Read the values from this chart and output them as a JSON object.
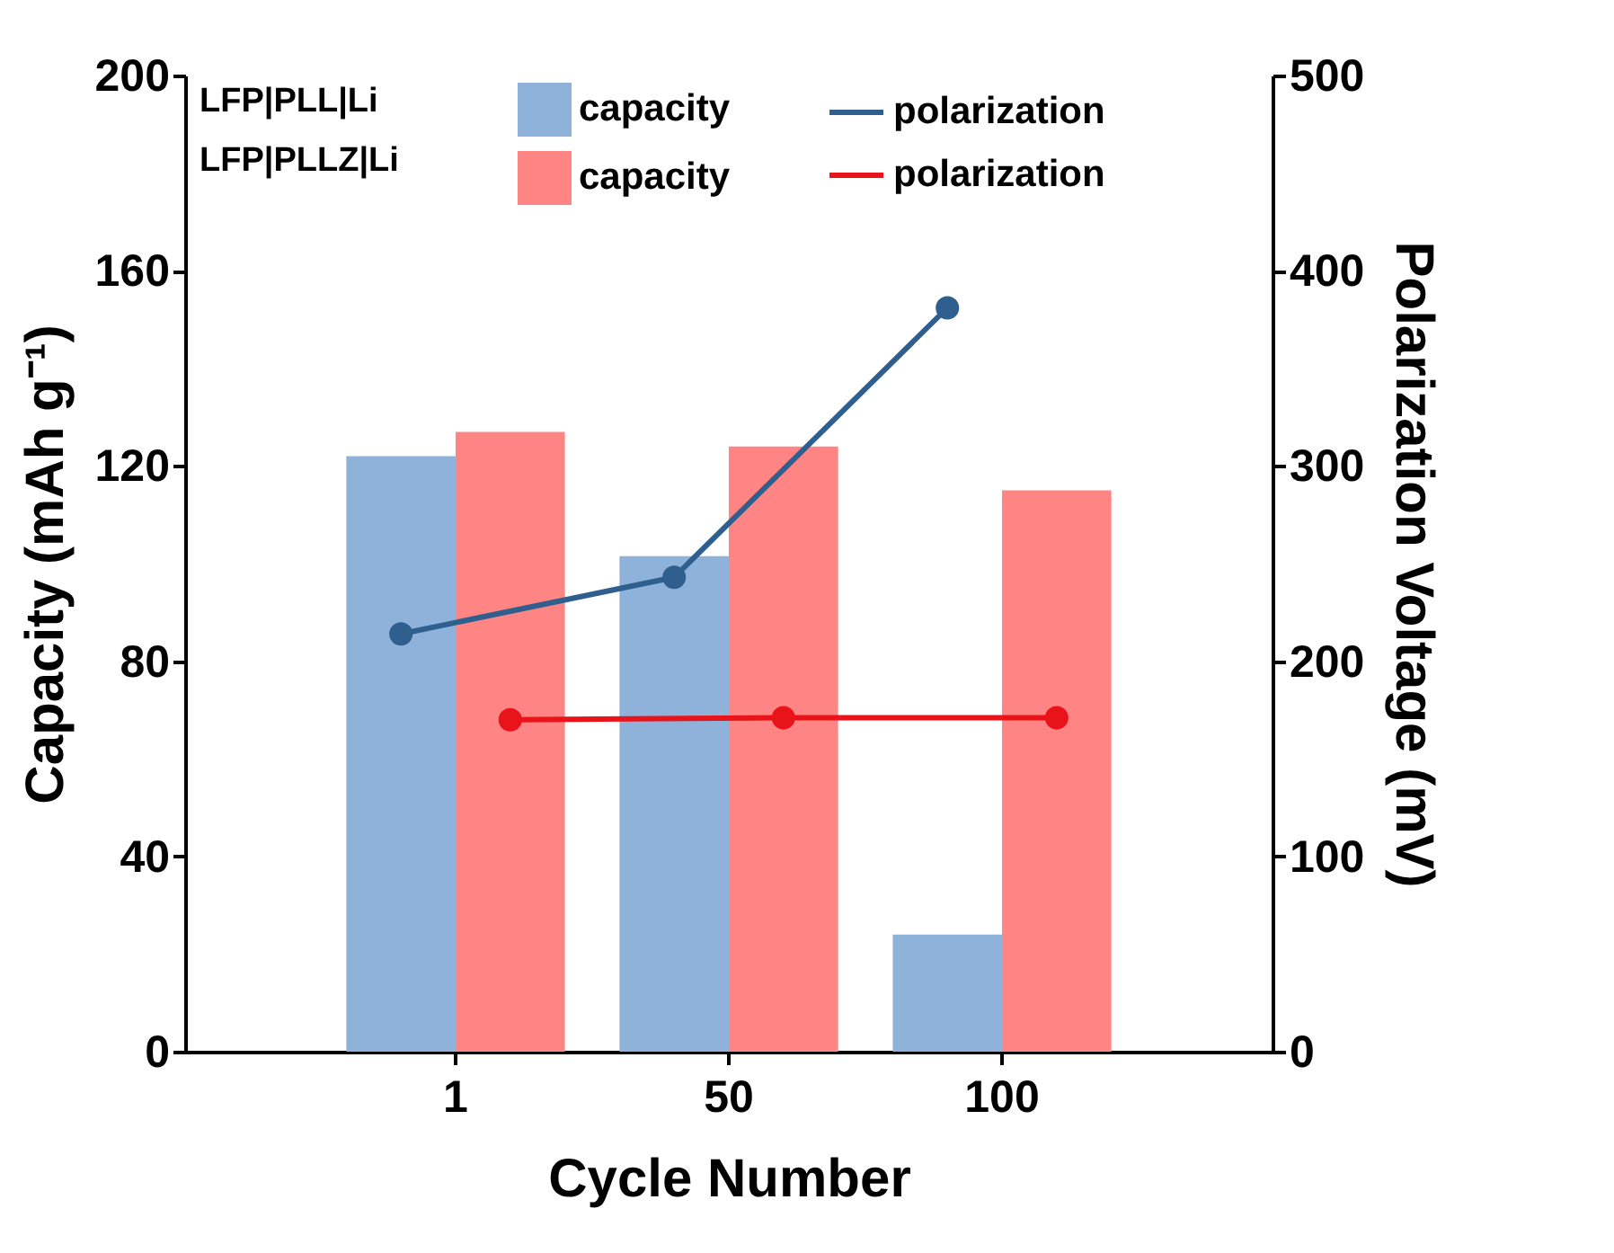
{
  "chart_data": {
    "type": "bar",
    "xlabel": "Cycle Number",
    "ylabel": "Capacity (mAh g⁻¹)",
    "y2label": "Polarization Voltage (mV)",
    "categories": [
      "1",
      "50",
      "100"
    ],
    "series": [
      {
        "name": "capacity",
        "color": "#8fb2da",
        "values": [
          122,
          101.5,
          24
        ]
      },
      {
        "name": "capacity",
        "color": "#ff8585",
        "values": [
          127,
          124,
          115
        ]
      },
      {
        "name": "polarization",
        "type": "line",
        "axis": "y2",
        "color": "#2e5f8f",
        "values": [
          214,
          243,
          381
        ]
      },
      {
        "name": "polarization",
        "type": "line",
        "axis": "y2",
        "color": "#e8141a",
        "values": [
          170,
          171,
          171
        ]
      }
    ],
    "annotations": [
      "LFP|PLL|Li",
      "LFP|PLLZ|Li"
    ],
    "ylim": [
      0,
      200
    ],
    "yticks": [
      0,
      40,
      80,
      120,
      160,
      200
    ],
    "y2lim": [
      0,
      500
    ],
    "y2ticks": [
      0,
      100,
      200,
      300,
      400,
      500
    ],
    "marker": "circle",
    "line_style": "solid",
    "grid": false,
    "legend": "top"
  }
}
